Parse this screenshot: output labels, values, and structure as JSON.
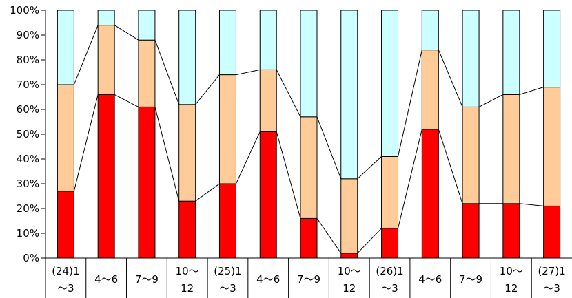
{
  "chart_data": {
    "type": "bar",
    "stacked": true,
    "normalized": true,
    "categories": [
      [
        "(24)1",
        "～3"
      ],
      [
        "4～6"
      ],
      [
        "7～9"
      ],
      [
        "10～",
        "12"
      ],
      [
        "(25)1",
        "～3"
      ],
      [
        "4～6"
      ],
      [
        "7～9"
      ],
      [
        "10～",
        "12"
      ],
      [
        "(26)1",
        "～3"
      ],
      [
        "4～6"
      ],
      [
        "7～9"
      ],
      [
        "10～",
        "12"
      ],
      [
        "(27)1",
        "～3"
      ]
    ],
    "series": [
      {
        "values": [
          27,
          66,
          61,
          23,
          30,
          51,
          16,
          2,
          12,
          52,
          22,
          22,
          21
        ],
        "color": "#ff0000"
      },
      {
        "values": [
          43,
          28,
          27,
          39,
          44,
          25,
          41,
          30,
          29,
          32,
          39,
          44,
          48
        ],
        "color": "#ffcc99"
      },
      {
        "values": [
          30,
          6,
          12,
          38,
          26,
          24,
          43,
          68,
          59,
          16,
          39,
          34,
          31
        ],
        "color": "#ccffff"
      }
    ],
    "yticks": [
      "0%",
      "10%",
      "20%",
      "30%",
      "40%",
      "50%",
      "60%",
      "70%",
      "80%",
      "90%",
      "100%"
    ],
    "ylim": [
      0,
      100
    ],
    "series_lines": true,
    "grid": false,
    "legend": "none"
  }
}
